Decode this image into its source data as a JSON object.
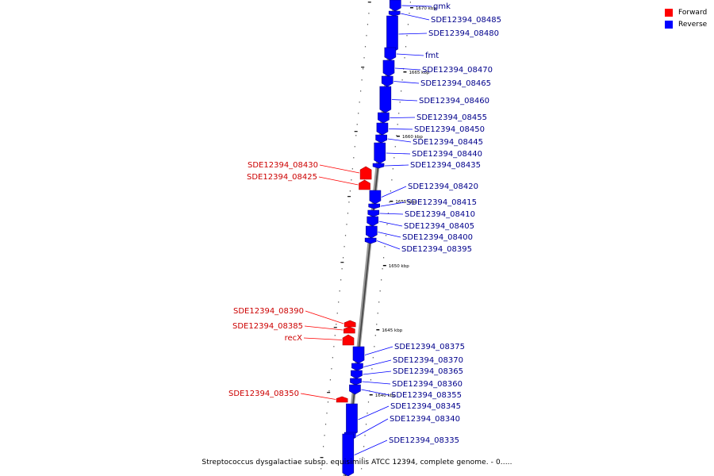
{
  "legend": {
    "forward_label": "Forward",
    "reverse_label": "Reverse",
    "forward_color": "#ff0000",
    "reverse_color": "#0000ff"
  },
  "caption": "Streptococcus dysgalactiae subsp. equisimilis ATCC 12394, complete genome. - 0.....",
  "scale_marks": [
    {
      "label": "1670 kbp"
    },
    {
      "label": "1665 kbp"
    },
    {
      "label": "1660 kbp"
    },
    {
      "label": "1655 kbp"
    },
    {
      "label": "1650 kbp"
    },
    {
      "label": "1645 kbp"
    },
    {
      "label": "1640 kbp"
    }
  ],
  "genes": [
    {
      "name": "gmk",
      "strand": "reverse"
    },
    {
      "name": "SDE12394_08485",
      "strand": "reverse"
    },
    {
      "name": "SDE12394_08480",
      "strand": "reverse"
    },
    {
      "name": "fmt",
      "strand": "reverse"
    },
    {
      "name": "SDE12394_08470",
      "strand": "reverse"
    },
    {
      "name": "SDE12394_08465",
      "strand": "reverse"
    },
    {
      "name": "SDE12394_08460",
      "strand": "reverse"
    },
    {
      "name": "SDE12394_08455",
      "strand": "reverse"
    },
    {
      "name": "SDE12394_08450",
      "strand": "reverse"
    },
    {
      "name": "SDE12394_08445",
      "strand": "reverse"
    },
    {
      "name": "SDE12394_08440",
      "strand": "reverse"
    },
    {
      "name": "SDE12394_08435",
      "strand": "reverse"
    },
    {
      "name": "SDE12394_08430",
      "strand": "forward"
    },
    {
      "name": "SDE12394_08425",
      "strand": "forward"
    },
    {
      "name": "SDE12394_08420",
      "strand": "reverse"
    },
    {
      "name": "SDE12394_08415",
      "strand": "reverse"
    },
    {
      "name": "SDE12394_08410",
      "strand": "reverse"
    },
    {
      "name": "SDE12394_08405",
      "strand": "reverse"
    },
    {
      "name": "SDE12394_08400",
      "strand": "reverse"
    },
    {
      "name": "SDE12394_08395",
      "strand": "reverse"
    },
    {
      "name": "SDE12394_08390",
      "strand": "forward"
    },
    {
      "name": "SDE12394_08385",
      "strand": "forward"
    },
    {
      "name": "recX",
      "strand": "forward"
    },
    {
      "name": "SDE12394_08375",
      "strand": "reverse"
    },
    {
      "name": "SDE12394_08370",
      "strand": "reverse"
    },
    {
      "name": "SDE12394_08365",
      "strand": "reverse"
    },
    {
      "name": "SDE12394_08360",
      "strand": "reverse"
    },
    {
      "name": "SDE12394_08355",
      "strand": "reverse"
    },
    {
      "name": "SDE12394_08350",
      "strand": "forward"
    },
    {
      "name": "SDE12394_08345",
      "strand": "reverse"
    },
    {
      "name": "SDE12394_08340",
      "strand": "reverse"
    },
    {
      "name": "SDE12394_08335",
      "strand": "reverse"
    }
  ]
}
